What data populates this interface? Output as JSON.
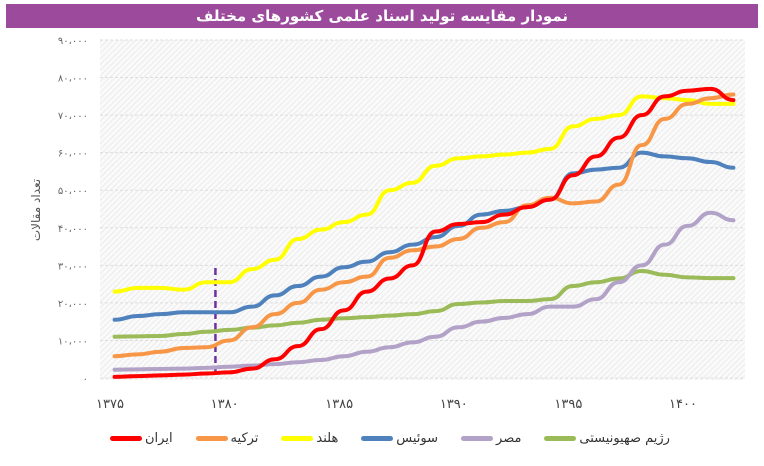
{
  "title": "نمودار مقایسه تولید اسناد علمی کشورهای مختلف",
  "chart_data": {
    "type": "line",
    "title": "نمودار مقایسه تولید اسناد علمی کشورهای مختلف",
    "xlabel": "",
    "ylabel": "تعداد مقالات",
    "xlim": [
      1375,
      1403
    ],
    "ylim": [
      0,
      90000
    ],
    "x_ticks": [
      1375,
      1380,
      1385,
      1390,
      1395,
      1400
    ],
    "x_tick_labels": [
      "۱۳۷۵",
      "۱۳۸۰",
      "۱۳۸۵",
      "۱۳۹۰",
      "۱۳۹۵",
      "۱۴۰۰"
    ],
    "y_ticks": [
      0,
      10000,
      20000,
      30000,
      40000,
      50000,
      60000,
      70000,
      80000,
      90000
    ],
    "y_tick_labels": [
      "۰",
      "۱۰،۰۰۰",
      "۲۰،۰۰۰",
      "۳۰،۰۰۰",
      "۴۰،۰۰۰",
      "۵۰،۰۰۰",
      "۶۰،۰۰۰",
      "۷۰،۰۰۰",
      "۸۰،۰۰۰",
      "۹۰،۰۰۰"
    ],
    "grid": true,
    "legend_position": "bottom",
    "marker_line": {
      "x": 1379.6,
      "color": "#7030a0",
      "style": "dashed"
    },
    "x": [
      1375,
      1376,
      1377,
      1378,
      1379,
      1380,
      1381,
      1382,
      1383,
      1384,
      1385,
      1386,
      1387,
      1388,
      1389,
      1390,
      1391,
      1392,
      1393,
      1394,
      1395,
      1396,
      1397,
      1398,
      1399,
      1400,
      1401,
      1402
    ],
    "series": [
      {
        "name": "ایران",
        "color": "#ff0000",
        "values": [
          300,
          500,
          700,
          900,
          1200,
          1500,
          2500,
          5000,
          8500,
          13000,
          18000,
          23000,
          26500,
          30000,
          39000,
          41000,
          41500,
          43500,
          45500,
          47500,
          54000,
          59000,
          64000,
          70000,
          75000,
          76500,
          77000,
          74000
        ]
      },
      {
        "name": "ترکیه",
        "color": "#f79646",
        "values": [
          5800,
          6300,
          7000,
          8000,
          8200,
          10000,
          13500,
          17000,
          20000,
          23500,
          25500,
          27000,
          32000,
          34000,
          35000,
          37000,
          40000,
          41500,
          46000,
          48000,
          46500,
          47000,
          51500,
          62000,
          69000,
          73000,
          74500,
          75500
        ]
      },
      {
        "name": "هلند",
        "color": "#ffff00",
        "values": [
          23000,
          24000,
          24000,
          23500,
          25500,
          25500,
          29000,
          31500,
          37000,
          39500,
          41500,
          43500,
          50000,
          52000,
          56500,
          58500,
          59000,
          59500,
          60000,
          61000,
          67000,
          69000,
          70000,
          75000,
          74500,
          74000,
          73000,
          73000
        ]
      },
      {
        "name": "سوئیس",
        "color": "#4f81bd",
        "values": [
          15500,
          16500,
          17000,
          17500,
          17500,
          17500,
          19000,
          22000,
          24500,
          27000,
          29500,
          31000,
          33500,
          35500,
          37500,
          40500,
          43500,
          44500,
          45500,
          47500,
          54500,
          55500,
          56000,
          60000,
          59000,
          58500,
          57500,
          56000
        ]
      },
      {
        "name": "مصر",
        "color": "#b3a2c7",
        "values": [
          2200,
          2300,
          2400,
          2500,
          2700,
          3000,
          3300,
          3700,
          4200,
          4800,
          5800,
          7000,
          8200,
          9500,
          11000,
          13500,
          15000,
          16000,
          17000,
          19000,
          19000,
          21000,
          25500,
          30000,
          35500,
          40500,
          44000,
          42000
        ]
      },
      {
        "name": "رژیم صهیونیستی",
        "color": "#9bbb59",
        "values": [
          11000,
          11100,
          11200,
          11700,
          12300,
          12800,
          13400,
          14000,
          14700,
          15500,
          15900,
          16200,
          16600,
          17000,
          17800,
          19700,
          20100,
          20500,
          20500,
          21000,
          24500,
          25500,
          26500,
          28500,
          27500,
          26800,
          26600,
          26600
        ]
      }
    ]
  }
}
